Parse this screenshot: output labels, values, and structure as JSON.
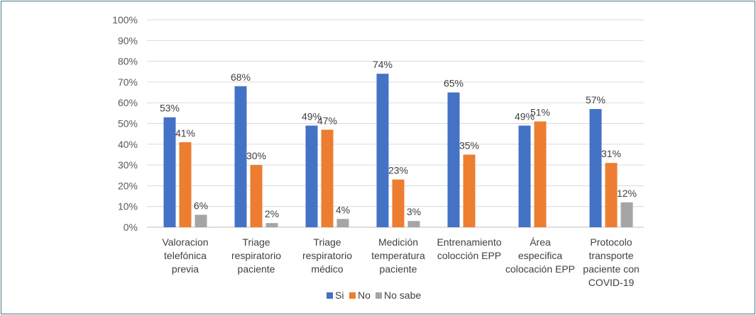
{
  "chart_data": {
    "type": "bar",
    "title": "",
    "xlabel": "",
    "ylabel": "",
    "ylim": [
      0,
      100
    ],
    "yticks": [
      "0%",
      "10%",
      "20%",
      "30%",
      "40%",
      "50%",
      "60%",
      "70%",
      "80%",
      "90%",
      "100%"
    ],
    "categories": [
      [
        "Valoracion",
        "telefónica",
        "previa"
      ],
      [
        "Triage",
        "respiratorio",
        "paciente"
      ],
      [
        "Triage",
        "respiratorio",
        "médico"
      ],
      [
        "Medición",
        "temperatura",
        "paciente"
      ],
      [
        "Entrenamiento",
        "colocción EPP"
      ],
      [
        "Área",
        "especifica",
        "colocación EPP"
      ],
      [
        "Protocolo",
        "transporte",
        "paciente con",
        "COVID-19"
      ]
    ],
    "series": [
      {
        "name": "Si",
        "color": "#4472c4",
        "values": [
          53,
          68,
          49,
          74,
          65,
          49,
          57
        ],
        "labels": [
          "53%",
          "68%",
          "49%",
          "74%",
          "65%",
          "49%",
          "57%"
        ]
      },
      {
        "name": "No",
        "color": "#ed7d31",
        "values": [
          41,
          30,
          47,
          23,
          35,
          51,
          31
        ],
        "labels": [
          "41%",
          "30%",
          "47%",
          "23%",
          "35%",
          "51%",
          "31%"
        ]
      },
      {
        "name": "No sabe",
        "color": "#a5a5a5",
        "values": [
          6,
          2,
          4,
          3,
          null,
          null,
          12
        ],
        "labels": [
          "6%",
          "2%",
          "4%",
          "3%",
          "",
          "",
          "12%"
        ]
      }
    ],
    "legend": "bottom",
    "grid": true
  }
}
